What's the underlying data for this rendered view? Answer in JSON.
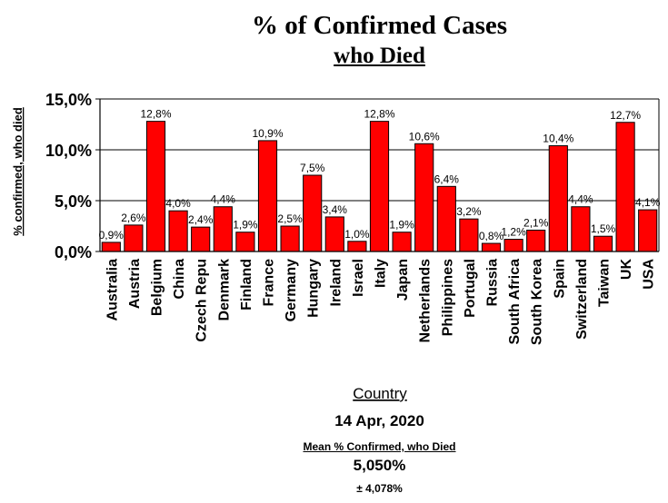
{
  "title": "% of Confirmed Cases",
  "subtitle": "who Died",
  "date": "14 Apr, 2020",
  "mean_label": "Mean % Confirmed, who Died",
  "mean_value": "5,050%",
  "mean_sd": "± 4,078%",
  "colors": {
    "bar": "#ff0000",
    "bar_outline": "#000000",
    "axis": "#000000"
  },
  "chart_data": {
    "type": "bar",
    "title": "% of Confirmed Cases who Died",
    "xlabel": "Country",
    "ylabel": "% confirmed, who died",
    "ylim": [
      0,
      15
    ],
    "y_ticks": [
      "0,0%",
      "5,0%",
      "10,0%",
      "15,0%"
    ],
    "y_tick_values": [
      0,
      5,
      10,
      15
    ],
    "grid": "horizontal",
    "categories": [
      "Australia",
      "Austria",
      "Belgium",
      "China",
      "Czech Repu",
      "Denmark",
      "Finland",
      "France",
      "Germany",
      "Hungary",
      "Ireland",
      "Israel",
      "Italy",
      "Japan",
      "Netherlands",
      "Philippines",
      "Portugal",
      "Russia",
      "South Africa",
      "South Korea",
      "Spain",
      "Switzerland",
      "Taiwan",
      "UK",
      "USA"
    ],
    "values": [
      0.9,
      2.6,
      12.8,
      4.0,
      2.4,
      4.4,
      1.9,
      10.9,
      2.5,
      7.5,
      3.4,
      1.0,
      12.8,
      1.9,
      10.6,
      6.4,
      3.2,
      0.8,
      1.2,
      2.1,
      10.4,
      4.4,
      1.5,
      12.7,
      4.1
    ],
    "data_labels": [
      "0,9%",
      "2,6%",
      "12,8%",
      "4,0%",
      "2,4%",
      "4,4%",
      "1,9%",
      "10,9%",
      "2,5%",
      "7,5%",
      "3,4%",
      "1,0%",
      "12,8%",
      "1,9%",
      "10,6%",
      "6,4%",
      "3,2%",
      "0,8%",
      "1,2%",
      "2,1%",
      "10,4%",
      "4,4%",
      "1,5%",
      "12,7%",
      "4,1%"
    ]
  }
}
